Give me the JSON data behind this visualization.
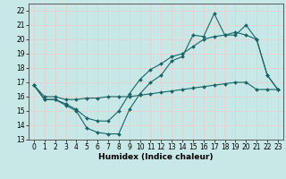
{
  "xlabel": "Humidex (Indice chaleur)",
  "xlim": [
    -0.5,
    23.5
  ],
  "ylim": [
    13,
    22.5
  ],
  "yticks": [
    13,
    14,
    15,
    16,
    17,
    18,
    19,
    20,
    21,
    22
  ],
  "xticks": [
    0,
    1,
    2,
    3,
    4,
    5,
    6,
    7,
    8,
    9,
    10,
    11,
    12,
    13,
    14,
    15,
    16,
    17,
    18,
    19,
    20,
    21,
    22,
    23
  ],
  "background_color": "#c8e8e8",
  "grid_color": "#e8d0d0",
  "line_color": "#1a6464",
  "line1_x": [
    0,
    1,
    2,
    3,
    4,
    5,
    6,
    7,
    8,
    9,
    10,
    11,
    12,
    13,
    14,
    15,
    16,
    17,
    18,
    19,
    20,
    21,
    22,
    23
  ],
  "line1_y": [
    16.8,
    15.8,
    15.8,
    15.4,
    15.0,
    13.8,
    13.5,
    13.4,
    13.4,
    15.1,
    16.2,
    17.0,
    17.5,
    18.5,
    18.8,
    20.3,
    20.2,
    21.8,
    20.3,
    20.3,
    21.0,
    20.0,
    17.5,
    16.5
  ],
  "line2_x": [
    0,
    1,
    2,
    3,
    4,
    5,
    6,
    7,
    8,
    9,
    10,
    11,
    12,
    13,
    14,
    15,
    16,
    17,
    18,
    19,
    20,
    21,
    22,
    23
  ],
  "line2_y": [
    16.8,
    15.8,
    15.8,
    15.5,
    15.1,
    14.5,
    14.3,
    14.3,
    15.0,
    16.2,
    17.2,
    17.9,
    18.3,
    18.8,
    19.0,
    19.5,
    20.0,
    20.2,
    20.3,
    20.5,
    20.3,
    20.0,
    17.5,
    16.5
  ],
  "line3_x": [
    0,
    1,
    2,
    3,
    4,
    5,
    6,
    7,
    8,
    9,
    10,
    11,
    12,
    13,
    14,
    15,
    16,
    17,
    18,
    19,
    20,
    21,
    22,
    23
  ],
  "line3_y": [
    16.8,
    16.0,
    16.0,
    15.8,
    15.8,
    15.9,
    15.9,
    16.0,
    16.0,
    16.0,
    16.1,
    16.2,
    16.3,
    16.4,
    16.5,
    16.6,
    16.7,
    16.8,
    16.9,
    17.0,
    17.0,
    16.5,
    16.5,
    16.5
  ],
  "marker": "D",
  "markersize": 2.0,
  "linewidth": 0.8,
  "label_fontsize": 6.5,
  "tick_fontsize": 5.5
}
